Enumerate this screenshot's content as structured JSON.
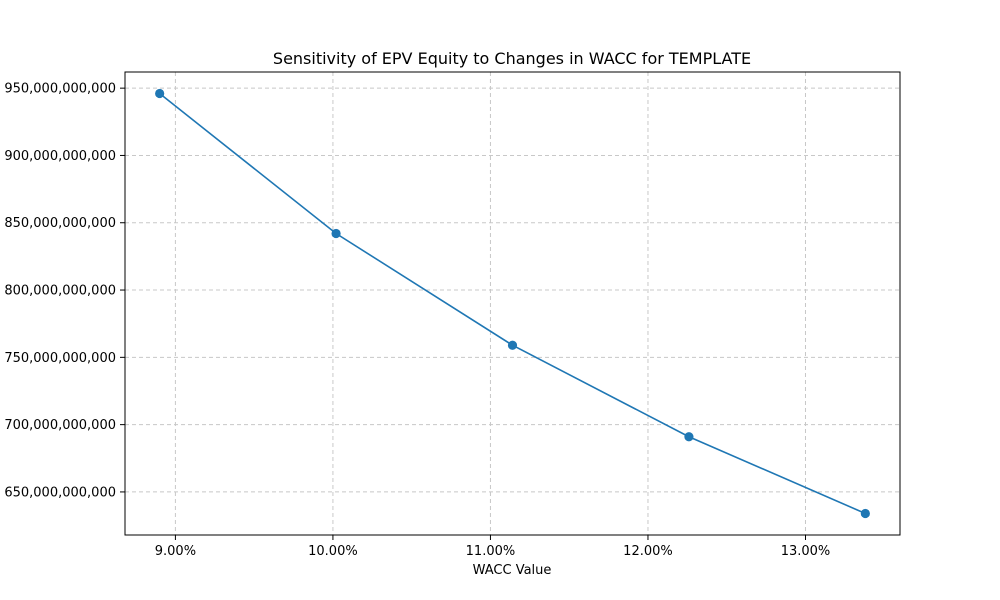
{
  "chart_data": {
    "type": "line",
    "title": "Sensitivity of EPV Equity to Changes in WACC for TEMPLATE",
    "xlabel": "WACC Value",
    "ylabel": "",
    "x": [
      0.089,
      0.1002,
      0.1114,
      0.1226,
      0.1338
    ],
    "series": [
      {
        "values": [
          946000000000,
          842000000000,
          759000000000,
          691000000000,
          634000000000
        ],
        "color": "#1f77b4",
        "marker": "circle"
      }
    ],
    "xlim": [
      0.0868,
      0.136
    ],
    "ylim": [
      618000000000,
      962000000000
    ],
    "xticks": [
      0.09,
      0.1,
      0.11,
      0.12,
      0.13
    ],
    "xtick_labels": [
      "9.00%",
      "10.00%",
      "11.00%",
      "12.00%",
      "13.00%"
    ],
    "yticks": [
      650000000000,
      700000000000,
      750000000000,
      800000000000,
      850000000000,
      900000000000,
      950000000000
    ],
    "ytick_labels": [
      "650,000,000,000",
      "700,000,000,000",
      "750,000,000,000",
      "800,000,000,000",
      "850,000,000,000",
      "900,000,000,000",
      "950,000,000,000"
    ],
    "grid": true,
    "grid_style": "dashed",
    "legend": "none"
  }
}
